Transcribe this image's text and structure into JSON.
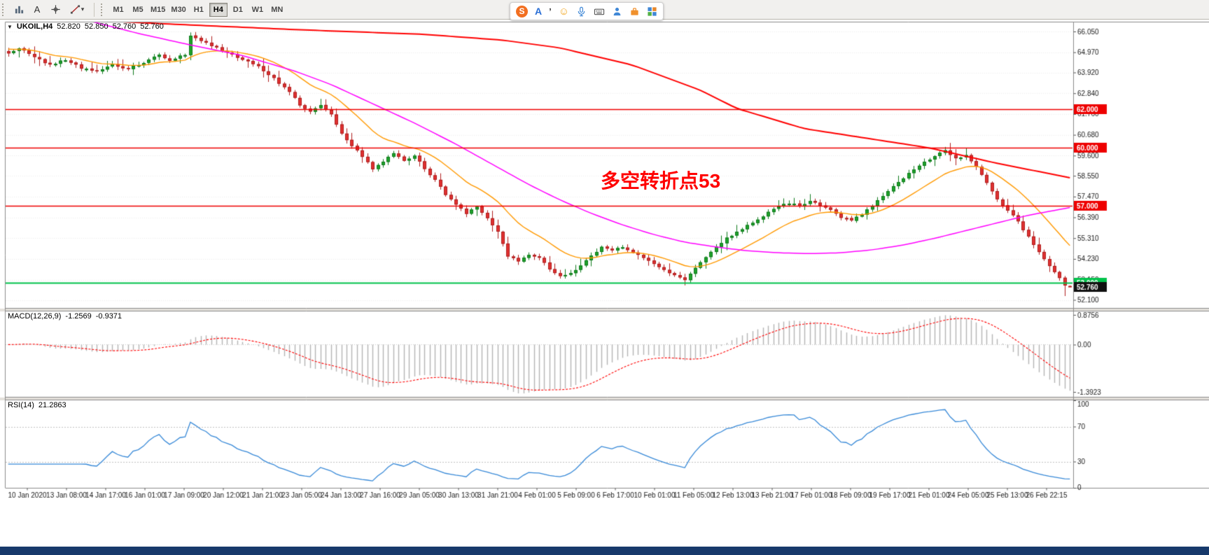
{
  "toolbar": {
    "timeframes": {
      "items": [
        "M1",
        "M5",
        "M15",
        "M30",
        "H1",
        "H4",
        "D1",
        "W1",
        "MN"
      ],
      "selected": "H4"
    },
    "icons": {
      "text_tool": "A",
      "chevron": "▾"
    }
  },
  "input_bar": {
    "logo": "S",
    "language": "A",
    "punctuation": "’",
    "emoji": "☺"
  },
  "chart": {
    "symbol": "UKOIL,H4",
    "title_icon": "▼",
    "open": "52.820",
    "high": "52.850",
    "low": "52.760",
    "close": "52.760",
    "macd_label": "MACD(12,26,9)",
    "macd_value": "-1.2569",
    "macd_signal_value": "-0.9371",
    "rsi_label": "RSI(14)",
    "rsi_value": "21.2863",
    "annotation": {
      "text": "多空转折点53",
      "color": "#FF0000"
    }
  },
  "colors": {
    "candle_up": "#1FA32B",
    "candle_up_border": "#0E7A1B",
    "candle_down": "#E03131",
    "candle_down_border": "#AF1E1E",
    "ma_orange": "#FF9900",
    "ma_magenta": "#FF00FF",
    "ma_red": "#FF0000",
    "hline_red": "#EE0000",
    "hline_green": "#00C24A",
    "tag_black_bg": "#111111",
    "tag_text": "#FFFFFF",
    "macd_hist": "#B4B4B4",
    "macd_signal": "#FF0000",
    "rsi_line": "#3789D8",
    "level_line": "#C0C0C0",
    "grid": "#ECECEC",
    "frame": "#8C8C8C",
    "axis_text": "#1A1A1A",
    "separator_fill": "#E4E1DB",
    "bottom_bar": "#17396B"
  },
  "chart_data": {
    "type": "candlestick",
    "symbol": "UKOIL",
    "timeframe": "H4",
    "bars": 205,
    "price_axis": {
      "top_tick": 66.05,
      "bottom_tick": 52.1,
      "ticks": [
        "66.050",
        "64.970",
        "63.920",
        "62.840",
        "61.760",
        "60.680",
        "59.600",
        "58.550",
        "57.470",
        "56.390",
        "55.310",
        "54.230",
        "53.150",
        "52.100"
      ]
    },
    "x_labels": [
      "10 Jan 2020",
      "13 Jan 08:00",
      "14 Jan 17:00",
      "16 Jan 01:00",
      "17 Jan 09:00",
      "20 Jan 12:00",
      "21 Jan 21:00",
      "23 Jan 05:00",
      "24 Jan 13:00",
      "27 Jan 16:00",
      "29 Jan 05:00",
      "30 Jan 13:00",
      "31 Jan 21:00",
      "4 Feb 01:00",
      "5 Feb 09:00",
      "6 Feb 17:00",
      "10 Feb 01:00",
      "11 Feb 05:00",
      "12 Feb 13:00",
      "13 Feb 21:00",
      "17 Feb 01:00",
      "18 Feb 09:00",
      "19 Feb 17:00",
      "21 Feb 01:00",
      "24 Feb 05:00",
      "25 Feb 13:00",
      "26 Feb 22:15"
    ],
    "close_anchors": [
      [
        0,
        64.9
      ],
      [
        2,
        65.2
      ],
      [
        5,
        64.75
      ],
      [
        8,
        64.3
      ],
      [
        11,
        64.6
      ],
      [
        14,
        64.15
      ],
      [
        17,
        63.95
      ],
      [
        20,
        64.35
      ],
      [
        23,
        64.1
      ],
      [
        26,
        64.45
      ],
      [
        29,
        64.85
      ],
      [
        31,
        64.55
      ],
      [
        34,
        64.85
      ],
      [
        35,
        65.85
      ],
      [
        37,
        65.55
      ],
      [
        39,
        65.3
      ],
      [
        42,
        64.95
      ],
      [
        45,
        64.6
      ],
      [
        48,
        64.25
      ],
      [
        51,
        63.6
      ],
      [
        54,
        62.9
      ],
      [
        56,
        62.25
      ],
      [
        58,
        61.9
      ],
      [
        60,
        62.2
      ],
      [
        62,
        61.7
      ],
      [
        64,
        60.7
      ],
      [
        66,
        60.1
      ],
      [
        68,
        59.55
      ],
      [
        70,
        58.9
      ],
      [
        72,
        59.3
      ],
      [
        74,
        59.7
      ],
      [
        76,
        59.35
      ],
      [
        78,
        59.6
      ],
      [
        80,
        58.9
      ],
      [
        82,
        58.3
      ],
      [
        84,
        57.6
      ],
      [
        86,
        57.1
      ],
      [
        88,
        56.6
      ],
      [
        90,
        56.9
      ],
      [
        92,
        56.3
      ],
      [
        94,
        55.6
      ],
      [
        96,
        54.4
      ],
      [
        98,
        54.1
      ],
      [
        100,
        54.45
      ],
      [
        102,
        54.3
      ],
      [
        104,
        53.7
      ],
      [
        106,
        53.3
      ],
      [
        108,
        53.45
      ],
      [
        110,
        53.9
      ],
      [
        112,
        54.4
      ],
      [
        114,
        54.85
      ],
      [
        116,
        54.65
      ],
      [
        118,
        54.85
      ],
      [
        120,
        54.55
      ],
      [
        122,
        54.3
      ],
      [
        124,
        53.95
      ],
      [
        126,
        53.65
      ],
      [
        128,
        53.4
      ],
      [
        130,
        53.1
      ],
      [
        132,
        53.75
      ],
      [
        134,
        54.35
      ],
      [
        136,
        54.9
      ],
      [
        138,
        55.3
      ],
      [
        140,
        55.65
      ],
      [
        142,
        55.95
      ],
      [
        144,
        56.3
      ],
      [
        146,
        56.65
      ],
      [
        148,
        56.95
      ],
      [
        150,
        57.15
      ],
      [
        152,
        56.95
      ],
      [
        154,
        57.25
      ],
      [
        156,
        57.05
      ],
      [
        158,
        56.75
      ],
      [
        160,
        56.4
      ],
      [
        162,
        56.2
      ],
      [
        164,
        56.55
      ],
      [
        166,
        57.0
      ],
      [
        168,
        57.5
      ],
      [
        170,
        58.0
      ],
      [
        172,
        58.45
      ],
      [
        174,
        58.9
      ],
      [
        176,
        59.25
      ],
      [
        178,
        59.55
      ],
      [
        180,
        59.85
      ],
      [
        182,
        59.45
      ],
      [
        184,
        59.6
      ],
      [
        186,
        59.05
      ],
      [
        188,
        58.15
      ],
      [
        190,
        57.35
      ],
      [
        192,
        56.75
      ],
      [
        194,
        56.15
      ],
      [
        196,
        55.35
      ],
      [
        198,
        54.6
      ],
      [
        200,
        53.85
      ],
      [
        202,
        53.25
      ],
      [
        203,
        52.85
      ],
      [
        204,
        52.76
      ]
    ],
    "key_points": [
      {
        "bar": 35,
        "high": 66.0
      },
      {
        "bar": 130,
        "low": 52.98
      },
      {
        "bar": 180,
        "high": 60.05
      },
      {
        "bar": 203,
        "low": 52.3
      }
    ],
    "current_bar": {
      "open": 52.82,
      "high": 52.85,
      "low": 52.76,
      "close": 52.76
    },
    "ma_orange": {
      "type": "ema",
      "period": 16
    },
    "ma_magenta": {
      "anchors": [
        [
          0,
          67.6
        ],
        [
          10,
          67.0
        ],
        [
          17,
          66.5
        ],
        [
          25,
          65.95
        ],
        [
          35,
          65.35
        ],
        [
          45,
          64.8
        ],
        [
          55,
          64.0
        ],
        [
          62,
          63.3
        ],
        [
          70,
          62.3
        ],
        [
          78,
          61.3
        ],
        [
          86,
          60.2
        ],
        [
          94,
          59.0
        ],
        [
          100,
          58.1
        ],
        [
          106,
          57.3
        ],
        [
          112,
          56.6
        ],
        [
          118,
          56.0
        ],
        [
          124,
          55.5
        ],
        [
          130,
          55.1
        ],
        [
          136,
          54.85
        ],
        [
          142,
          54.65
        ],
        [
          148,
          54.55
        ],
        [
          154,
          54.5
        ],
        [
          160,
          54.55
        ],
        [
          166,
          54.7
        ],
        [
          172,
          54.95
        ],
        [
          178,
          55.3
        ],
        [
          184,
          55.7
        ],
        [
          190,
          56.1
        ],
        [
          196,
          56.5
        ],
        [
          204,
          56.9
        ]
      ]
    },
    "ma_red": {
      "anchors": [
        [
          0,
          66.85
        ],
        [
          30,
          66.45
        ],
        [
          55,
          66.15
        ],
        [
          80,
          65.9
        ],
        [
          95,
          65.6
        ],
        [
          106,
          65.2
        ],
        [
          120,
          64.3
        ],
        [
          133,
          63.0
        ],
        [
          140,
          62.05
        ],
        [
          153,
          61.0
        ],
        [
          165,
          60.5
        ],
        [
          177,
          60.0
        ],
        [
          190,
          59.2
        ],
        [
          204,
          58.45
        ]
      ]
    },
    "hlines": [
      {
        "price": 62.0,
        "label": "62.000",
        "color": "#EE0000",
        "width": 1.5
      },
      {
        "price": 60.0,
        "label": "60.000",
        "color": "#EE0000",
        "width": 1.5
      },
      {
        "price": 57.0,
        "label": "57.000",
        "color": "#EE0000",
        "width": 1.5
      },
      {
        "price": 53.0,
        "label": "53.000",
        "color": "#00C24A",
        "width": 2
      }
    ],
    "current_price_tag": {
      "label": "52.760",
      "value": 52.76
    },
    "macd": {
      "params": [
        12,
        26,
        9
      ],
      "axis_labels": [
        {
          "text": "0.8756",
          "value": 0.8756
        },
        {
          "text": "0.00",
          "value": 0
        },
        {
          "text": "-1.3923",
          "value": -1.3923
        }
      ]
    },
    "rsi": {
      "period": 14,
      "levels": [
        70,
        30
      ],
      "axis_labels": [
        {
          "text": "100",
          "value": 100
        },
        {
          "text": "70",
          "value": 70
        },
        {
          "text": "30",
          "value": 30
        },
        {
          "text": "0",
          "value": 0
        }
      ]
    }
  }
}
